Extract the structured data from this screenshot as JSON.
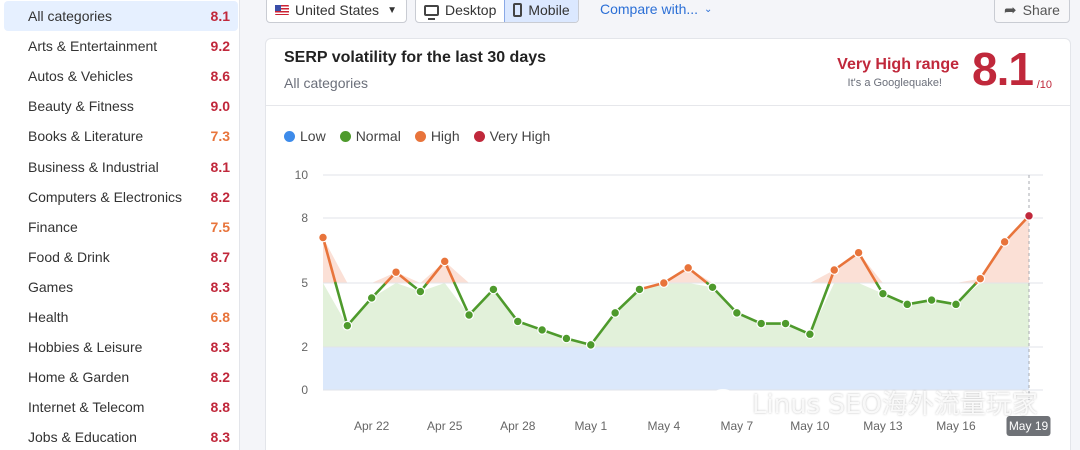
{
  "sidebar": {
    "items": [
      {
        "label": "All categories",
        "score": "8.1",
        "level": "vhigh",
        "active": true
      },
      {
        "label": "Arts & Entertainment",
        "score": "9.2",
        "level": "vhigh"
      },
      {
        "label": "Autos & Vehicles",
        "score": "8.6",
        "level": "vhigh"
      },
      {
        "label": "Beauty & Fitness",
        "score": "9.0",
        "level": "vhigh"
      },
      {
        "label": "Books & Literature",
        "score": "7.3",
        "level": "high"
      },
      {
        "label": "Business & Industrial",
        "score": "8.1",
        "level": "vhigh"
      },
      {
        "label": "Computers & Electronics",
        "score": "8.2",
        "level": "vhigh"
      },
      {
        "label": "Finance",
        "score": "7.5",
        "level": "high"
      },
      {
        "label": "Food & Drink",
        "score": "8.7",
        "level": "vhigh"
      },
      {
        "label": "Games",
        "score": "8.3",
        "level": "vhigh"
      },
      {
        "label": "Health",
        "score": "6.8",
        "level": "high"
      },
      {
        "label": "Hobbies & Leisure",
        "score": "8.3",
        "level": "vhigh"
      },
      {
        "label": "Home & Garden",
        "score": "8.2",
        "level": "vhigh"
      },
      {
        "label": "Internet & Telecom",
        "score": "8.8",
        "level": "vhigh"
      },
      {
        "label": "Jobs & Education",
        "score": "8.3",
        "level": "vhigh"
      }
    ]
  },
  "toolbar": {
    "country": "United States",
    "desktop_label": "Desktop",
    "mobile_label": "Mobile",
    "selected_device": "Mobile",
    "compare_label": "Compare with...",
    "share_label": "Share"
  },
  "card": {
    "title": "SERP volatility for the last 30 days",
    "subtitle": "All categories",
    "range_title": "Very High range",
    "range_sub": "It's a Googlequake!",
    "score": "8.1",
    "score_max": "/10"
  },
  "legend": [
    {
      "label": "Low",
      "color": "#3d8bea"
    },
    {
      "label": "Normal",
      "color": "#4e9a2c"
    },
    {
      "label": "High",
      "color": "#e8743b"
    },
    {
      "label": "Very High",
      "color": "#c0283b"
    }
  ],
  "colors": {
    "low_band": "#dbe8fb",
    "normal_band": "#e2f1da",
    "high_band": "#fbe0d6",
    "accent_blue": "#2b6fd6",
    "very_high": "#c0283b"
  },
  "watermark": "Linus SEO海外流量玩家",
  "chart_data": {
    "type": "line",
    "title": "SERP volatility for the last 30 days",
    "x_tick_labels": [
      "Apr 22",
      "Apr 25",
      "Apr 28",
      "May 1",
      "May 4",
      "May 7",
      "May 10",
      "May 13",
      "May 16",
      "May 19"
    ],
    "y_tick_labels": [
      "0",
      "2",
      "5",
      "8",
      "10"
    ],
    "ylim": [
      0,
      10
    ],
    "bands": [
      {
        "name": "Low",
        "from": 0,
        "to": 2
      },
      {
        "name": "Normal",
        "from": 2,
        "to": 5
      },
      {
        "name": "High",
        "from": 5,
        "to": 8
      },
      {
        "name": "Very High",
        "from": 8,
        "to": 10
      }
    ],
    "x": [
      "Apr 20",
      "Apr 21",
      "Apr 22",
      "Apr 23",
      "Apr 24",
      "Apr 25",
      "Apr 26",
      "Apr 27",
      "Apr 28",
      "Apr 29",
      "Apr 30",
      "May 1",
      "May 2",
      "May 3",
      "May 4",
      "May 5",
      "May 6",
      "May 7",
      "May 8",
      "May 9",
      "May 10",
      "May 11",
      "May 12",
      "May 13",
      "May 14",
      "May 15",
      "May 16",
      "May 17",
      "May 18",
      "May 19"
    ],
    "values": [
      7.1,
      3.0,
      4.3,
      5.5,
      4.6,
      6.0,
      3.5,
      4.7,
      3.2,
      2.8,
      2.4,
      2.1,
      3.6,
      4.7,
      5.0,
      5.7,
      4.8,
      3.6,
      3.1,
      3.1,
      2.6,
      5.6,
      6.4,
      4.5,
      4.0,
      4.2,
      4.0,
      5.2,
      6.9,
      8.1
    ],
    "grid": true,
    "highlighted_x": "May 19"
  }
}
